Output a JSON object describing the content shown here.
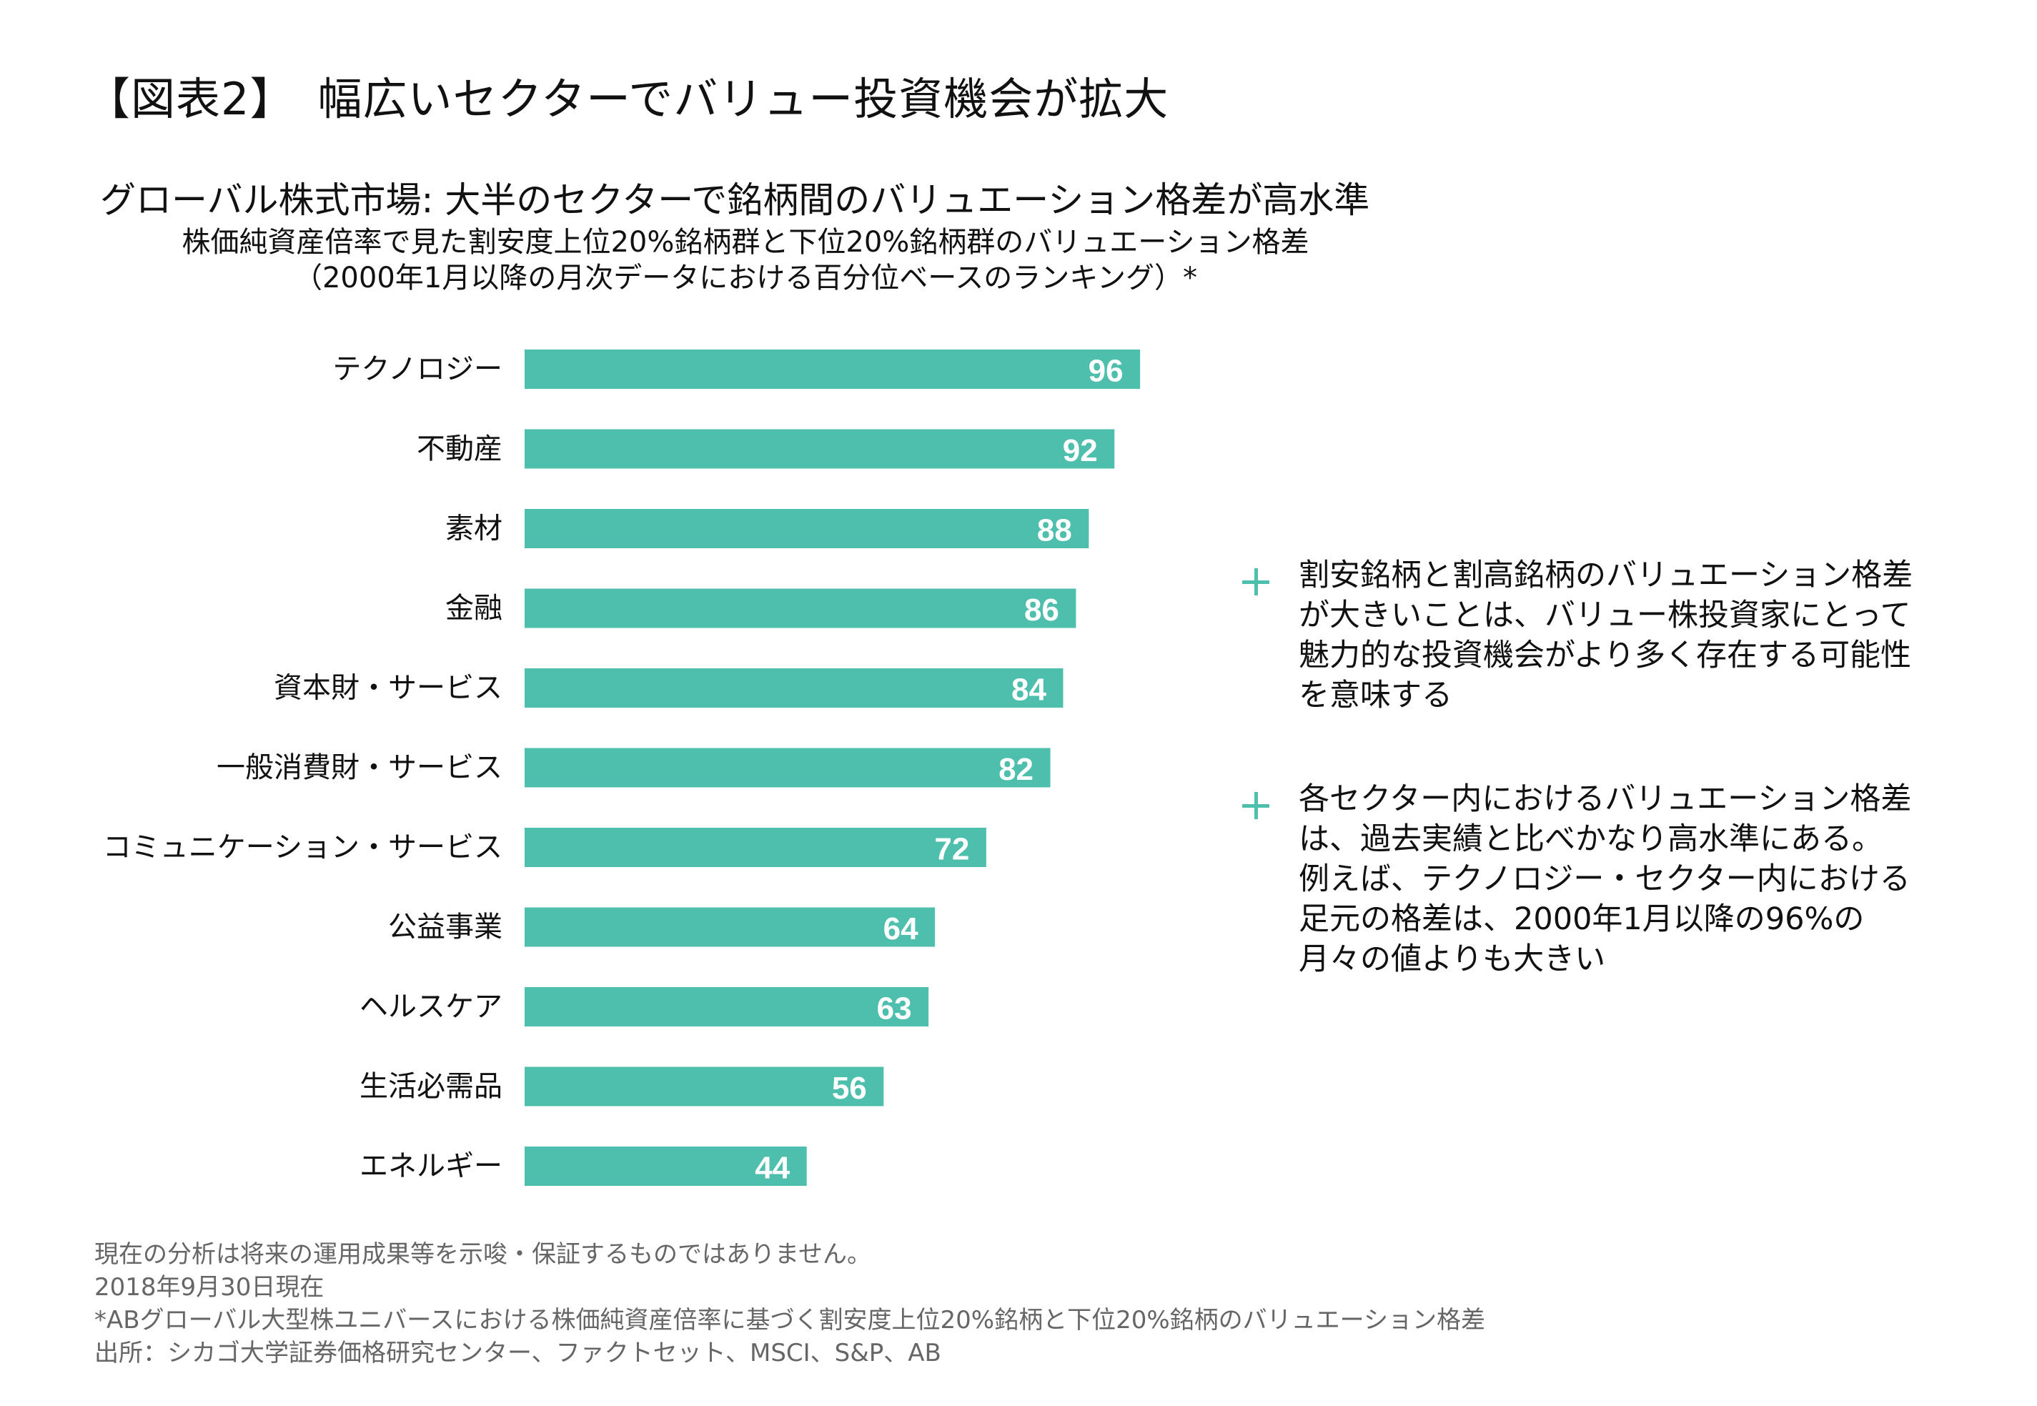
{
  "header": {
    "title": "【図表2】　幅広いセクターでバリュー投資機会が拡大"
  },
  "chart_data": {
    "type": "bar",
    "orientation": "horizontal",
    "title": "グローバル株式市場: 大半のセクターで銘柄間のバリュエーション格差が高水準",
    "subtitle": "株価純資産倍率で見た割安度上位20%銘柄群と下位20%銘柄群のバリュエーション格差",
    "subtitle2": "（2000年1月以降の月次データにおける百分位ベースのランキング）*",
    "categories": [
      "テクノロジー",
      "不動産",
      "素材",
      "金融",
      "資本財・サービス",
      "一般消費財・サービス",
      "コミュニケーション・サービス",
      "公益事業",
      "ヘルスケア",
      "生活必需品",
      "エネルギー"
    ],
    "values": [
      96,
      92,
      88,
      86,
      84,
      82,
      72,
      64,
      63,
      56,
      44
    ],
    "xlim": [
      0,
      100
    ],
    "grid": false,
    "data_labels": true,
    "bar_color": "#4fbfad"
  },
  "notes": [
    {
      "icon": "plus-icon",
      "lines": [
        "割安銘柄と割高銘柄のバリュエーション格差",
        "が大きいことは、バリュー株投資家にとって",
        "魅力的な投資機会がより多く存在する可能性",
        "を意味する"
      ]
    },
    {
      "icon": "plus-icon",
      "lines": [
        "各セクター内におけるバリュエーション格差",
        "は、過去実績と比べかなり高水準にある。",
        "例えば、テクノロジー・セクター内における",
        "足元の格差は、2000年1月以降の96%の",
        "月々の値よりも大きい"
      ]
    }
  ],
  "footer": [
    "現在の分析は将来の運用成果等を示唆・保証するものではありません。",
    "2018年9月30日現在",
    "*ABグローバル大型株ユニバースにおける株価純資産倍率に基づく割安度上位20%銘柄と下位20%銘柄のバリュエーション格差",
    "出所：シカゴ大学証券価格研究センター、ファクトセット、MSCI、S&P、AB"
  ]
}
